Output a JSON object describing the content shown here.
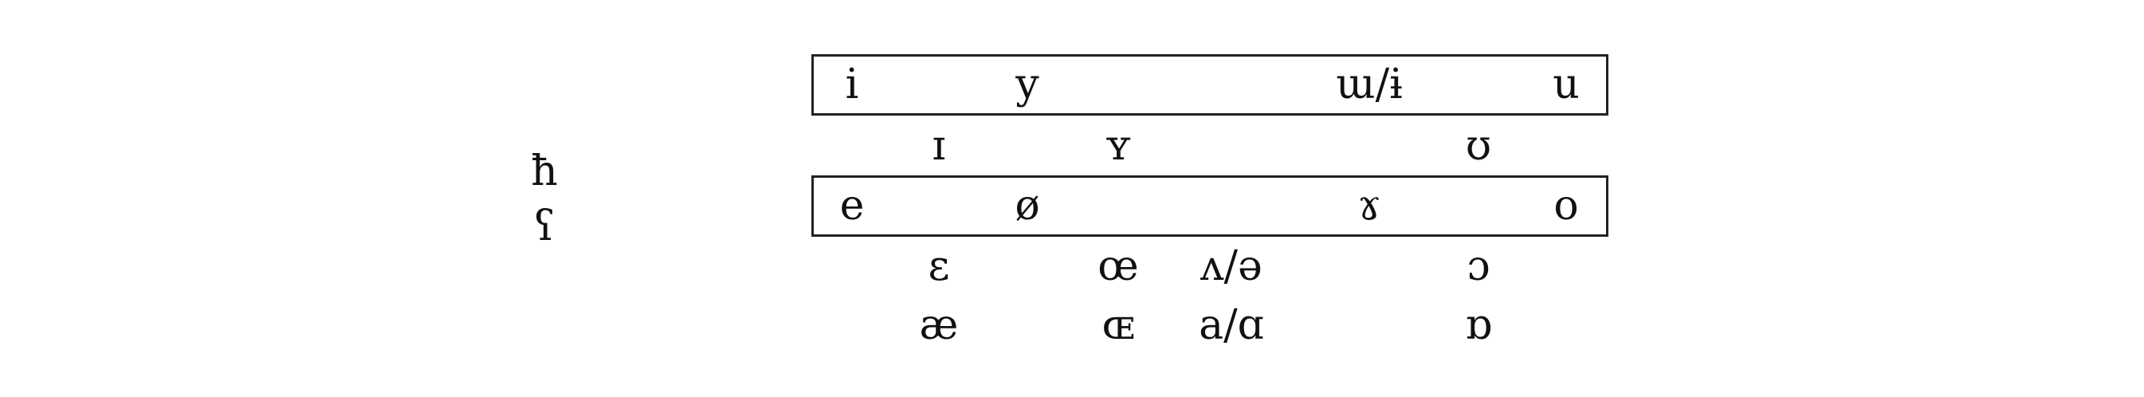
{
  "left_column": {
    "pharyngeal_fricative": "ħ",
    "pharyngeal_voiced": "ʕ"
  },
  "rows": {
    "close": {
      "front_unrounded": "i",
      "front_rounded": "y",
      "back_unrounded": "ɯ/ɨ",
      "back_rounded": "u"
    },
    "near_close": {
      "front_unrounded": "ɪ",
      "front_rounded": "ʏ",
      "back_rounded": "ʊ"
    },
    "close_mid": {
      "front_unrounded": "e",
      "front_rounded": "ø",
      "back_unrounded": "ɤ",
      "back_rounded": "o"
    },
    "open_mid": {
      "front_unrounded": "ɛ",
      "front_rounded": "œ",
      "central": "ʌ/ə",
      "back_rounded": "ɔ"
    },
    "open": {
      "front_unrounded": "æ",
      "front_rounded": "ɶ",
      "central": "a/ɑ",
      "back_rounded": "ɒ"
    }
  }
}
